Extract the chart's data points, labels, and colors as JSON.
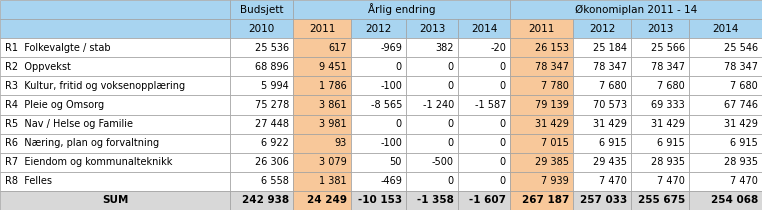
{
  "col_headers_line1": [
    "",
    "Budsjett",
    "Årlig endring",
    "",
    "",
    "",
    "Økonomiplan 2011 - 14",
    "",
    "",
    ""
  ],
  "col_headers_line2": [
    "",
    "2010",
    "2011",
    "2012",
    "2013",
    "2014",
    "2011",
    "2012",
    "2013",
    "2014"
  ],
  "rows": [
    [
      "R1  Folkevalgte / stab",
      "25 536",
      "617",
      "-969",
      "382",
      "-20",
      "26 153",
      "25 184",
      "25 566",
      "25 546"
    ],
    [
      "R2  Oppvekst",
      "68 896",
      "9 451",
      "0",
      "0",
      "0",
      "78 347",
      "78 347",
      "78 347",
      "78 347"
    ],
    [
      "R3  Kultur, fritid og voksenopplæring",
      "5 994",
      "1 786",
      "-100",
      "0",
      "0",
      "7 780",
      "7 680",
      "7 680",
      "7 680"
    ],
    [
      "R4  Pleie og Omsorg",
      "75 278",
      "3 861",
      "-8 565",
      "-1 240",
      "-1 587",
      "79 139",
      "70 573",
      "69 333",
      "67 746"
    ],
    [
      "R5  Nav / Helse og Familie",
      "27 448",
      "3 981",
      "0",
      "0",
      "0",
      "31 429",
      "31 429",
      "31 429",
      "31 429"
    ],
    [
      "R6  Næring, plan og forvaltning",
      "6 922",
      "93",
      "-100",
      "0",
      "0",
      "7 015",
      "6 915",
      "6 915",
      "6 915"
    ],
    [
      "R7  Eiendom og kommunalteknikk",
      "26 306",
      "3 079",
      "50",
      "-500",
      "0",
      "29 385",
      "29 435",
      "28 935",
      "28 935"
    ],
    [
      "R8  Felles",
      "6 558",
      "1 381",
      "-469",
      "0",
      "0",
      "7 939",
      "7 470",
      "7 470",
      "7 470"
    ]
  ],
  "sum_row": [
    "SUM",
    "242 938",
    "24 249",
    "-10 153",
    "-1 358",
    "-1 607",
    "267 187",
    "257 033",
    "255 675",
    "254 068"
  ],
  "header_bg": "#a8d4f0",
  "highlight_bg": "#f8c89a",
  "sum_row_bg": "#d8d8d8",
  "normal_row_bg": "#ffffff",
  "text_color": "#000000",
  "border_color": "#a0a0a0",
  "figwidth": 7.62,
  "figheight": 2.1,
  "dpi": 100
}
